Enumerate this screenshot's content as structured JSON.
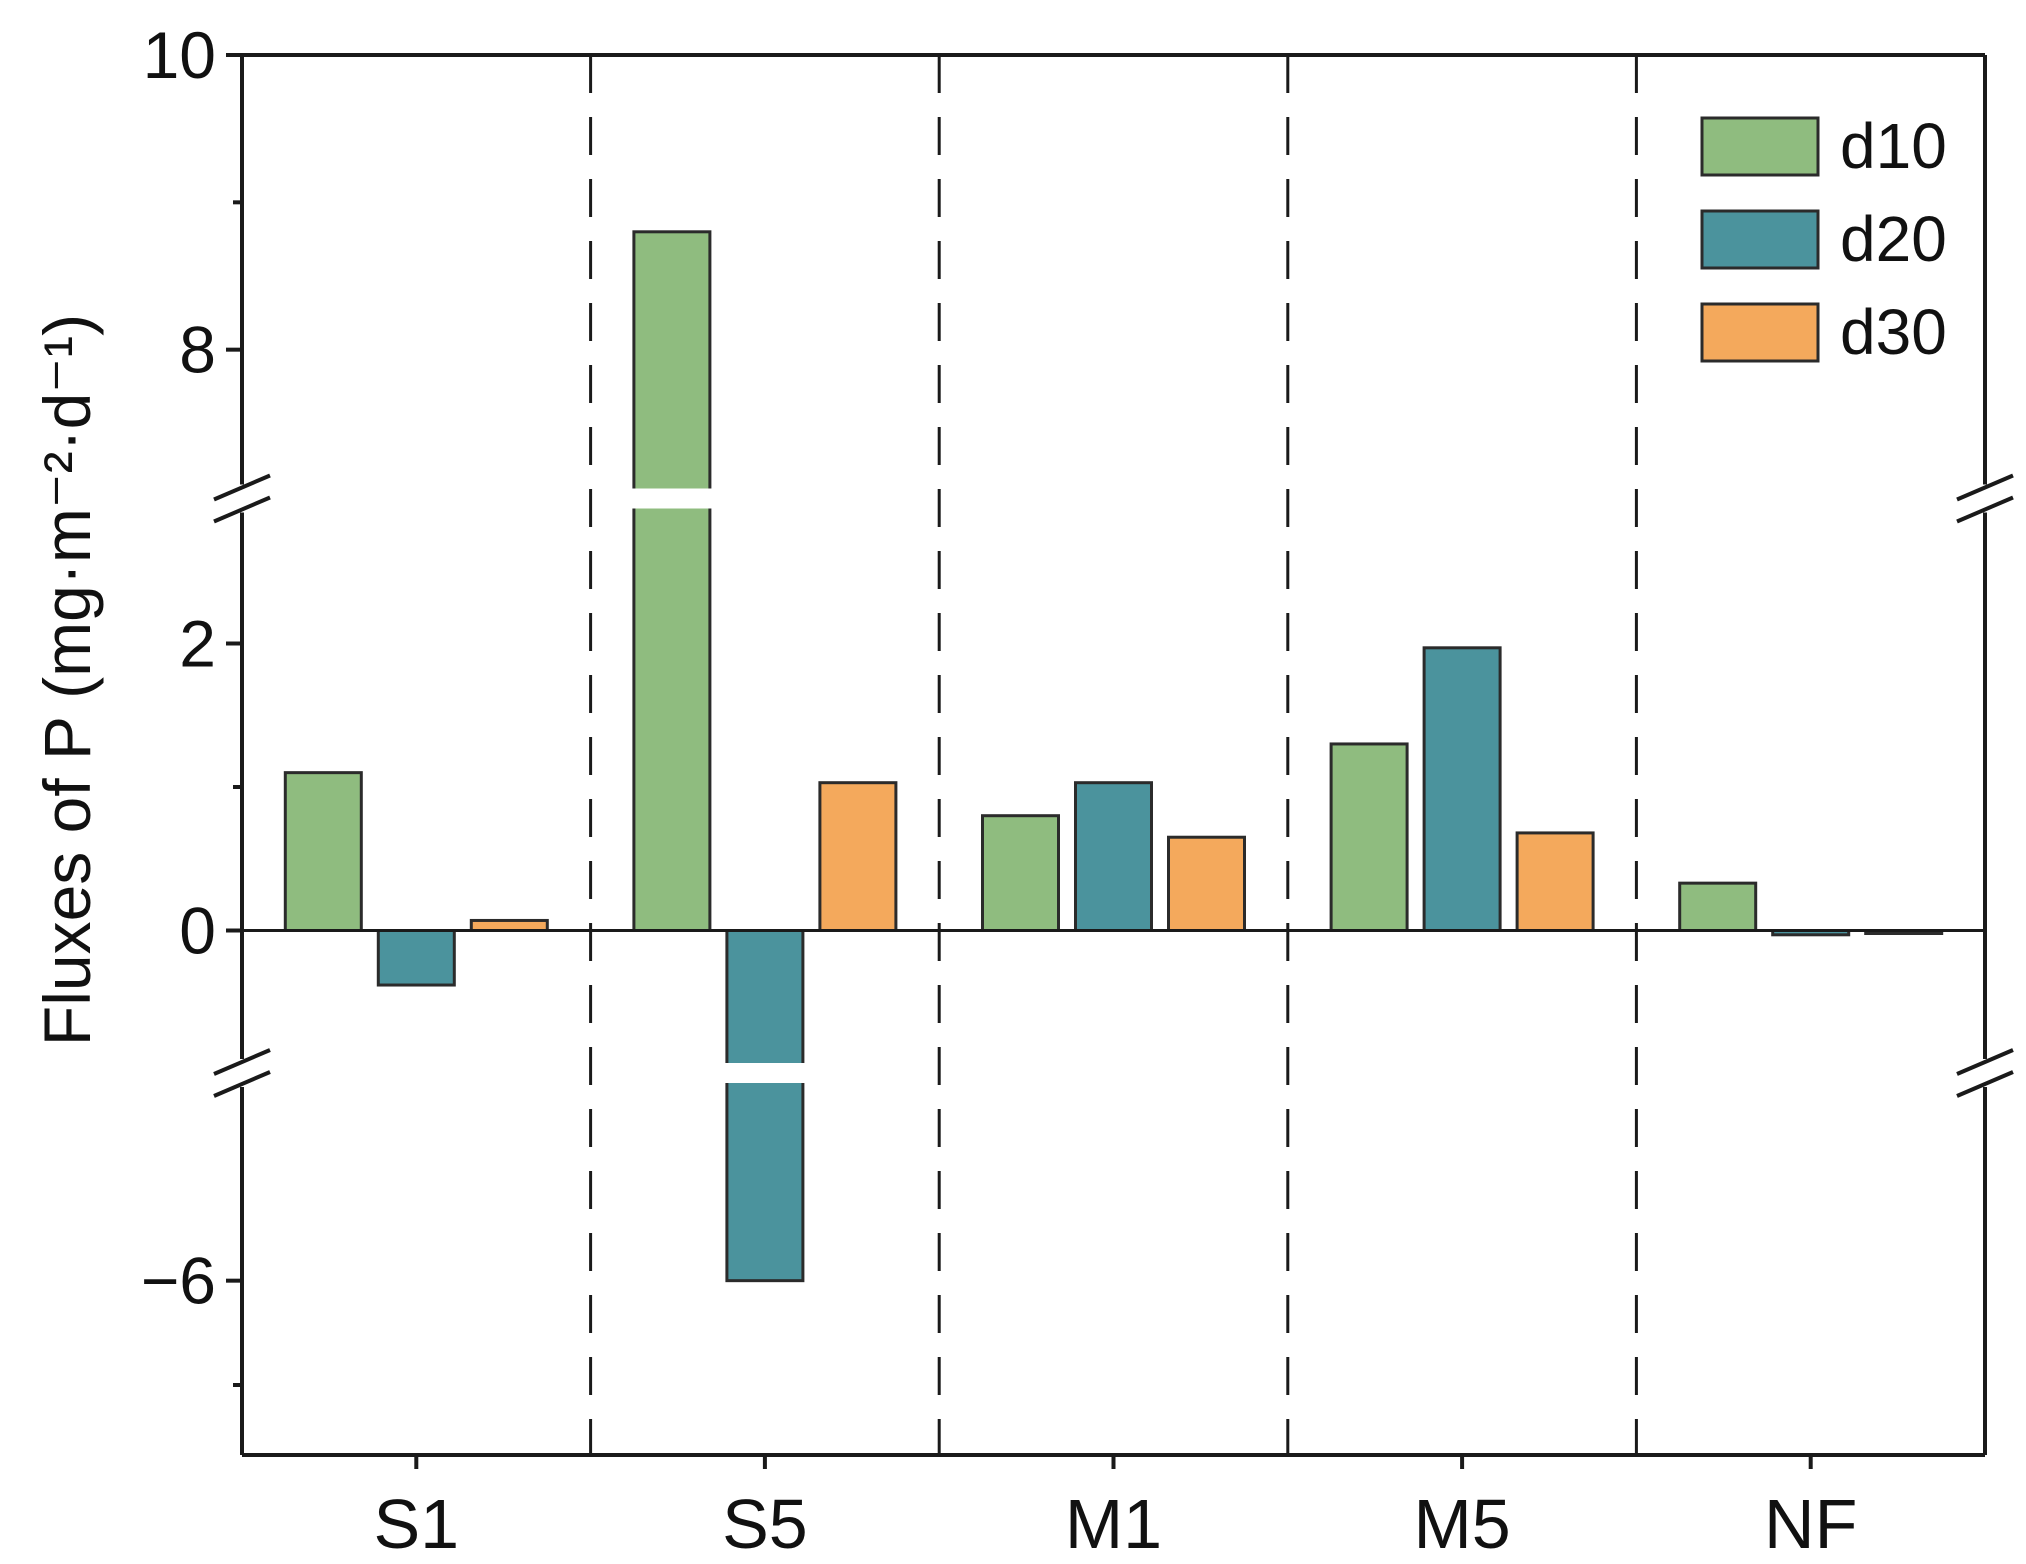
{
  "chart_data": {
    "type": "bar",
    "title": "",
    "xlabel": "",
    "ylabel": "Fluxes of P (mg·m⁻²·d⁻¹)",
    "categories": [
      "S1",
      "S5",
      "M1",
      "M5",
      "NF"
    ],
    "series": [
      {
        "name": "d10",
        "color": "#8fbc7f",
        "values": [
          1.1,
          8.8,
          0.8,
          1.3,
          0.33
        ]
      },
      {
        "name": "d20",
        "color": "#4b939d",
        "values": [
          -0.38,
          -6.0,
          1.03,
          1.97,
          -0.03
        ]
      },
      {
        "name": "d30",
        "color": "#f4a95c",
        "values": [
          0.07,
          1.03,
          0.65,
          0.68,
          0.0
        ]
      }
    ],
    "ylim": [
      -7,
      10
    ],
    "axis_breaks": [
      [
        -4,
        -1
      ],
      [
        3,
        7
      ]
    ],
    "y_ticks": [
      {
        "value": -6,
        "label": "−6"
      },
      {
        "value": 0,
        "label": "0"
      },
      {
        "value": 2,
        "label": "2"
      },
      {
        "value": 8,
        "label": "8"
      },
      {
        "value": 10,
        "label": "10"
      }
    ],
    "y_minor_ticks": [
      -7,
      1,
      9
    ],
    "grid": false,
    "group_separators": "dashed vertical lines between categories",
    "legend": {
      "position": "top-right",
      "entries": [
        "d10",
        "d20",
        "d30"
      ]
    }
  }
}
